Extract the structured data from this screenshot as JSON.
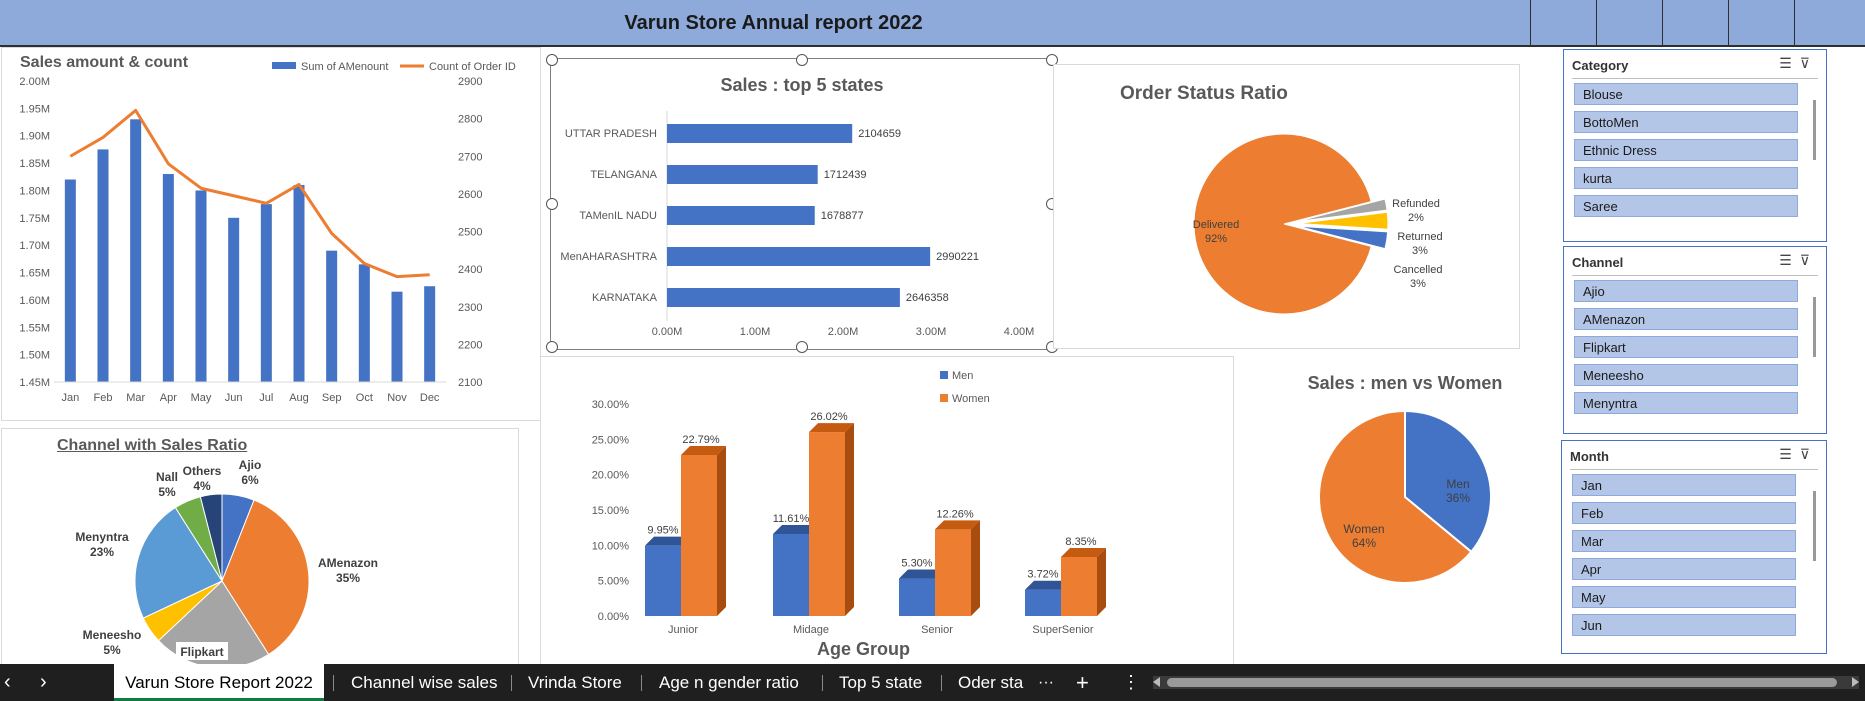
{
  "banner": {
    "title": "Varun Store  Annual report 2022"
  },
  "sales_chart": {
    "title": "Sales amount & count",
    "legend_bar": "Sum of AMenount",
    "legend_line": "Count of Order ID",
    "y_left_ticks": [
      "2.00M",
      "1.95M",
      "1.90M",
      "1.85M",
      "1.80M",
      "1.75M",
      "1.70M",
      "1.65M",
      "1.60M",
      "1.55M",
      "1.50M",
      "1.45M"
    ],
    "y_right_ticks": [
      "2900",
      "2800",
      "2700",
      "2600",
      "2500",
      "2400",
      "2300",
      "2200",
      "2100"
    ],
    "months": [
      "Jan",
      "Feb",
      "Mar",
      "Apr",
      "May",
      "Jun",
      "Jul",
      "Aug",
      "Sep",
      "Oct",
      "Nov",
      "Dec"
    ]
  },
  "top5": {
    "title": "Sales : top 5 states",
    "states": [
      "UTTAR PRADESH",
      "TELANGANA",
      "TAMenIL NADU",
      "MenAHARASHTRA",
      "KARNATAKA"
    ],
    "value_labels": [
      "2104659",
      "1712439",
      "1678877",
      "2990221",
      "2646358"
    ],
    "x_ticks": [
      "0.00M",
      "1.00M",
      "2.00M",
      "3.00M",
      "4.00M"
    ]
  },
  "order_status": {
    "title": "Order Status Ratio",
    "labels": [
      {
        "name": "Delivered",
        "pct": "92%"
      },
      {
        "name": "Refunded",
        "pct": "2%"
      },
      {
        "name": "Returned",
        "pct": "3%"
      },
      {
        "name": "Cancelled",
        "pct": "3%"
      }
    ]
  },
  "channel": {
    "title": "Channel with Sales Ratio",
    "slices": [
      {
        "name": "Ajio",
        "pct": "6%"
      },
      {
        "name": "AMenazon",
        "pct": "35%"
      },
      {
        "name": "Flipkart",
        "pct": ""
      },
      {
        "name": "Meneesho",
        "pct": "5%"
      },
      {
        "name": "Menyntra",
        "pct": "23%"
      },
      {
        "name": "Nall",
        "pct": "5%"
      },
      {
        "name": "Others",
        "pct": "4%"
      }
    ]
  },
  "age_group": {
    "title": "Age Group",
    "legend_men": "Men",
    "legend_women": "Women",
    "y_ticks": [
      "30.00%",
      "25.00%",
      "20.00%",
      "15.00%",
      "10.00%",
      "5.00%",
      "0.00%"
    ],
    "groups": [
      "Junior",
      "Midage",
      "Senior",
      "SuperSenior"
    ],
    "men_labels": [
      "9.95%",
      "11.61%",
      "5.30%",
      "3.72%"
    ],
    "women_labels": [
      "22.79%",
      "26.02%",
      "12.26%",
      "8.35%"
    ]
  },
  "gender": {
    "title": "Sales : men vs Women",
    "men_label": "Men",
    "men_pct": "36%",
    "women_label": "Women",
    "women_pct": "64%"
  },
  "slicers": {
    "category": {
      "title": "Category",
      "items": [
        "Blouse",
        "BottoMen",
        "Ethnic Dress",
        "kurta",
        "Saree"
      ]
    },
    "channel": {
      "title": "Channel",
      "items": [
        "Ajio",
        "AMenazon",
        "Flipkart",
        "Meneesho",
        "Menyntra"
      ]
    },
    "month": {
      "title": "Month",
      "items": [
        "Jan",
        "Feb",
        "Mar",
        "Apr",
        "May",
        "Jun"
      ]
    }
  },
  "tabs": {
    "active": "Varun Store Report 2022",
    "others": [
      "Channel wise sales",
      "Vrinda Store",
      "Age n gender ratio",
      "Top 5 state",
      "Oder sta"
    ],
    "more": "···",
    "add": "+",
    "menu": "⋮",
    "prev": "‹",
    "next": "›"
  },
  "colors": {
    "blue": "#4472c4",
    "orange": "#ed7d31",
    "gray": "#a5a5a5",
    "yellow": "#ffc000",
    "lightblue": "#5b9bd5",
    "green": "#70ad47",
    "navy": "#264478",
    "banner": "#8eaadb"
  },
  "chart_data": [
    {
      "type": "bar",
      "title": "Sales amount & count",
      "categories": [
        "Jan",
        "Feb",
        "Mar",
        "Apr",
        "May",
        "Jun",
        "Jul",
        "Aug",
        "Sep",
        "Oct",
        "Nov",
        "Dec"
      ],
      "series": [
        {
          "name": "Sum of AMenount",
          "axis": "left",
          "values": [
            1.82,
            1.875,
            1.93,
            1.83,
            1.8,
            1.75,
            1.775,
            1.81,
            1.69,
            1.665,
            1.615,
            1.625
          ]
        },
        {
          "name": "Count of Order ID",
          "axis": "right",
          "type": "line",
          "values": [
            2700,
            2750,
            2822,
            2680,
            2615,
            2595,
            2575,
            2625,
            2495,
            2415,
            2380,
            2385
          ]
        }
      ],
      "ylim_left": [
        1.45,
        2.0
      ],
      "ylim_right": [
        2100,
        2900
      ],
      "legend": "top-right"
    },
    {
      "type": "bar",
      "title": "Sales : top 5 states",
      "orientation": "horizontal",
      "categories": [
        "UTTAR PRADESH",
        "TELANGANA",
        "TAMenIL NADU",
        "MenAHARASHTRA",
        "KARNATAKA"
      ],
      "values": [
        2104659,
        1712439,
        1678877,
        2990221,
        2646358
      ],
      "xlim": [
        0,
        4000000
      ]
    },
    {
      "type": "pie",
      "title": "Order Status Ratio",
      "categories": [
        "Delivered",
        "Refunded",
        "Returned",
        "Cancelled"
      ],
      "values": [
        92,
        2,
        3,
        3
      ]
    },
    {
      "type": "pie",
      "title": "Channel with Sales Ratio",
      "categories": [
        "Ajio",
        "AMenazon",
        "Flipkart",
        "Meneesho",
        "Menyntra",
        "Nall",
        "Others"
      ],
      "values": [
        6,
        35,
        22,
        5,
        23,
        5,
        4
      ]
    },
    {
      "type": "bar",
      "title": "",
      "xlabel": "Age Group",
      "categories": [
        "Junior",
        "Midage",
        "Senior",
        "SuperSenior"
      ],
      "series": [
        {
          "name": "Men",
          "values": [
            9.95,
            11.61,
            5.3,
            3.72
          ]
        },
        {
          "name": "Women",
          "values": [
            22.79,
            26.02,
            12.26,
            8.35
          ]
        }
      ],
      "ylim": [
        0,
        30
      ],
      "legend": "top"
    },
    {
      "type": "pie",
      "title": "Sales : men vs Women",
      "categories": [
        "Men",
        "Women"
      ],
      "values": [
        36,
        64
      ]
    }
  ]
}
